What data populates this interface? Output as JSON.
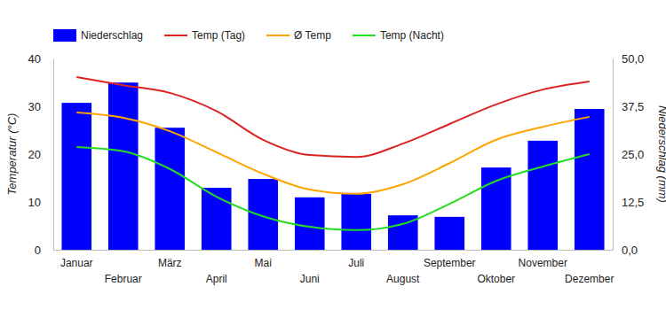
{
  "chart_data": {
    "type": "bar",
    "y_label": "Temperatur (°C)",
    "y2_label": "Niederschlag (mm)",
    "categories": [
      "Januar",
      "Februar",
      "März",
      "April",
      "Mai",
      "Juni",
      "Juli",
      "August",
      "September",
      "Oktober",
      "November",
      "Dezember"
    ],
    "series": [
      {
        "name": "Niederschlag",
        "type": "bar",
        "axis": "y2",
        "color": "#0000ff",
        "values": [
          38.4,
          43.7,
          31.9,
          16.2,
          18.5,
          13.7,
          14.6,
          9.0,
          8.6,
          21.5,
          28.5,
          36.8
        ]
      },
      {
        "name": "Temp (Tag)",
        "type": "line",
        "color": "#dd2222",
        "values": [
          36.1,
          34.4,
          32.8,
          29.0,
          23.0,
          19.8,
          19.4,
          22.2,
          26.3,
          30.4,
          33.5,
          35.2
        ]
      },
      {
        "name": "Ø Temp",
        "type": "line",
        "color": "#ffa500",
        "values": [
          28.7,
          27.6,
          24.8,
          20.4,
          15.9,
          12.6,
          11.7,
          13.7,
          18.1,
          23.0,
          25.7,
          27.8
        ]
      },
      {
        "name": "Temp (Nacht)",
        "type": "line",
        "color": "#22dd22",
        "values": [
          21.5,
          20.6,
          16.9,
          11.1,
          7.0,
          4.8,
          4.1,
          5.4,
          9.6,
          14.4,
          17.4,
          20.0
        ]
      }
    ],
    "ylim": [
      0,
      40
    ],
    "yticks": [
      0,
      10,
      20,
      30,
      40
    ],
    "y2lim": [
      0,
      50
    ],
    "y2ticks": [
      {
        "value": 0,
        "label": "0,0"
      },
      {
        "value": 12.5,
        "label": "12,5"
      },
      {
        "value": 25,
        "label": "25,0"
      },
      {
        "value": 37.5,
        "label": "37,5"
      },
      {
        "value": 50,
        "label": "50,0"
      }
    ],
    "legend": "top",
    "grid": false
  }
}
